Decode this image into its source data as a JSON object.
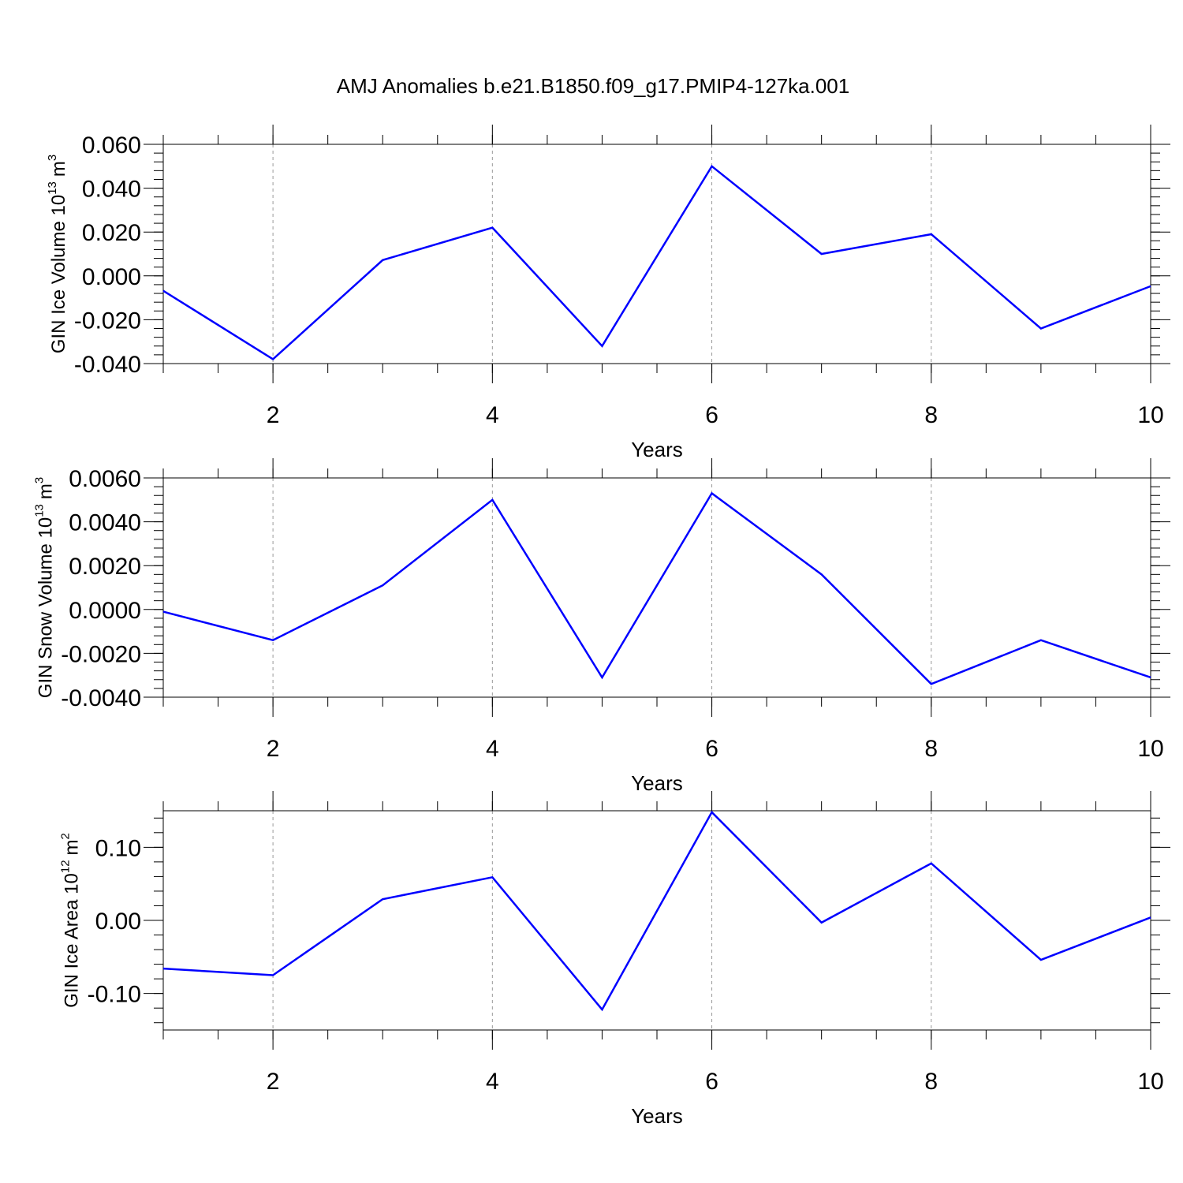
{
  "chart_data": [
    {
      "type": "line",
      "title": "AMJ Anomalies b.e21.B1850.f09_g17.PMIP4-127ka.001",
      "ylabel": [
        "GIN Ice Volume 10",
        "13",
        "m",
        "3"
      ],
      "xlabel": "Years",
      "x": [
        1,
        2,
        3,
        4,
        5,
        6,
        7,
        8,
        9,
        10
      ],
      "series": [
        {
          "color": "#0000ff",
          "values": [
            -0.0068,
            -0.038,
            0.0072,
            0.022,
            -0.032,
            0.05,
            0.01,
            0.019,
            -0.024,
            -0.0047
          ]
        }
      ],
      "xlim": [
        1,
        10
      ],
      "xticks": [
        2,
        4,
        6,
        8,
        10
      ],
      "ylim": [
        -0.04,
        0.06
      ],
      "yticks": [
        {
          "value": -0.04,
          "label": "-0.040"
        },
        {
          "value": -0.02,
          "label": "-0.020"
        },
        {
          "value": 0,
          "label": "0.000"
        },
        {
          "value": 0.02,
          "label": "0.020"
        },
        {
          "value": 0.04,
          "label": "0.040"
        },
        {
          "value": 0.06,
          "label": "0.060"
        }
      ],
      "xgrid": true
    },
    {
      "type": "line",
      "ylabel": [
        "GIN Snow Volume 10",
        "13",
        "m",
        "3"
      ],
      "xlabel": "Years",
      "x": [
        1,
        2,
        3,
        4,
        5,
        6,
        7,
        8,
        9,
        10
      ],
      "series": [
        {
          "color": "#0000ff",
          "values": [
            -0.0001,
            -0.0014,
            0.0011,
            0.005,
            -0.0031,
            0.0053,
            0.0016,
            -0.0034,
            -0.0014,
            -0.0031
          ]
        }
      ],
      "xlim": [
        1,
        10
      ],
      "xticks": [
        2,
        4,
        6,
        8,
        10
      ],
      "ylim": [
        -0.004,
        0.006
      ],
      "yticks": [
        {
          "value": -0.004,
          "label": "-0.0040"
        },
        {
          "value": -0.002,
          "label": "-0.0020"
        },
        {
          "value": 0,
          "label": "0.0000"
        },
        {
          "value": 0.002,
          "label": "0.0020"
        },
        {
          "value": 0.004,
          "label": "0.0040"
        },
        {
          "value": 0.006,
          "label": "0.0060"
        }
      ],
      "xgrid": true
    },
    {
      "type": "line",
      "ylabel": [
        "GIN Ice Area 10",
        "12",
        "m",
        "2"
      ],
      "xlabel": "Years",
      "x": [
        1,
        2,
        3,
        4,
        5,
        6,
        7,
        8,
        9,
        10
      ],
      "series": [
        {
          "color": "#0000ff",
          "values": [
            -0.066,
            -0.075,
            0.029,
            0.059,
            -0.122,
            0.148,
            -0.003,
            0.078,
            -0.054,
            0.004
          ]
        }
      ],
      "xlim": [
        1,
        10
      ],
      "xticks": [
        2,
        4,
        6,
        8,
        10
      ],
      "ylim": [
        -0.15,
        0.15
      ],
      "yticks": [
        {
          "value": -0.1,
          "label": "-0.10"
        },
        {
          "value": 0,
          "label": "0.00"
        },
        {
          "value": 0.1,
          "label": "0.10"
        }
      ],
      "xgrid": true
    }
  ]
}
